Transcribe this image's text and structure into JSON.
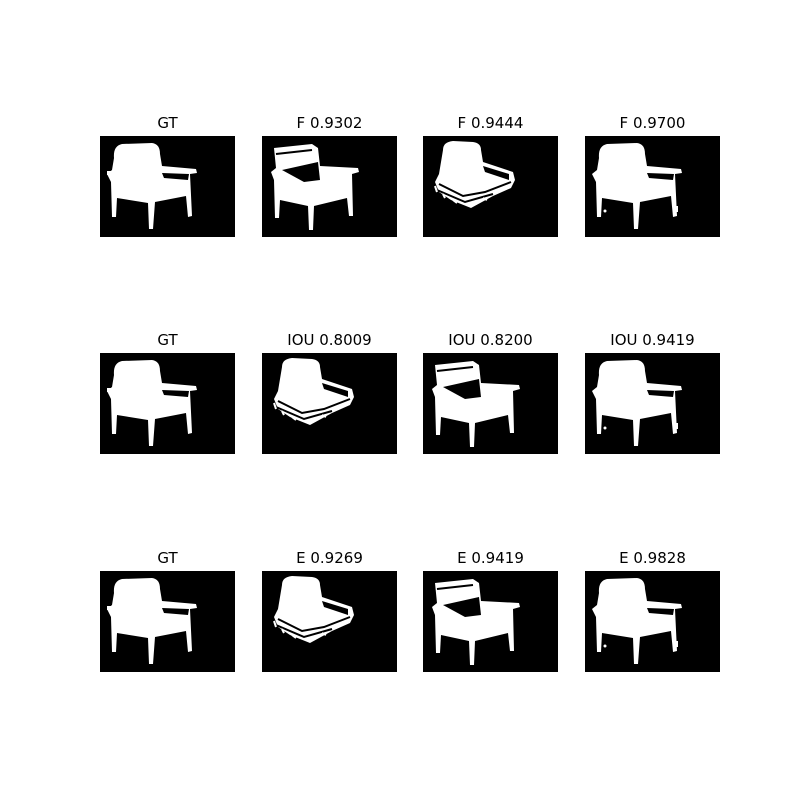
{
  "panels": [
    [
      {
        "title": "GT",
        "variant": "gt"
      },
      {
        "title": "F 0.9302",
        "variant": "b"
      },
      {
        "title": "F 0.9444",
        "variant": "a"
      },
      {
        "title": "F 0.9700",
        "variant": "c"
      }
    ],
    [
      {
        "title": "GT",
        "variant": "gt"
      },
      {
        "title": "IOU 0.8009",
        "variant": "a"
      },
      {
        "title": "IOU 0.8200",
        "variant": "b"
      },
      {
        "title": "IOU 0.9419",
        "variant": "c"
      }
    ],
    [
      {
        "title": "GT",
        "variant": "gt"
      },
      {
        "title": "E 0.9269",
        "variant": "a"
      },
      {
        "title": "E 0.9419",
        "variant": "b"
      },
      {
        "title": "E 0.9828",
        "variant": "c"
      }
    ]
  ],
  "colors": {
    "background": "#000000",
    "foreground": "#ffffff"
  }
}
